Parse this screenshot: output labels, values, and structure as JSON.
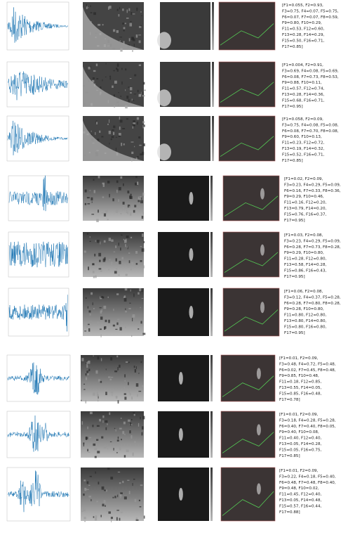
{
  "rows": [
    {
      "features": [
        "[F1=0.055, F2=0.93,",
        "F3=0.75, F4=0.07, F5=0.75,",
        "F6=0.07, F7=0.07, F8=0.59,",
        "F9=0.80, F10=0.29,",
        "F11=0.53, F12=0.60,",
        "F13=0.28, F14=0.29,",
        "F15=0.50, F16=0.71,",
        "F17=0.85]"
      ]
    },
    {
      "features": [
        "[F1=0.004, F2=0.91,",
        "F3=0.69, F4=0.08, F5=0.69,",
        "F6=0.08, F7=0.73, F8=0.53,",
        "F9=0.88, F10=0.11,",
        "F11=0.57, F12=0.74,",
        "F13=0.28, F14=0.36,",
        "F15=0.68, F16=0.71,",
        "F17=0.95]"
      ]
    },
    {
      "features": [
        "[F1=0.058, F2=0.09,",
        "F3=0.75, F4=0.08, F5=0.08,",
        "F6=0.08, F7=0.70, F8=0.08,",
        "F9=0.60, F10=0.13,",
        "F11=0.23, F12=0.72,",
        "F13=0.19, F14=0.32,",
        "F15=0.52, F16=0.71,",
        "F17=0.85]"
      ]
    },
    {
      "features": [
        "[F1=0.02, F2=0.09,",
        "F3=0.23, F4=0.29, F5=0.09,",
        "F6=0.16, F7=0.33, F8=0.36,",
        "F9=0.29, F10=0.46,",
        "F11=0.16, F12=0.20,",
        "F13=0.79, F14=0.20,",
        "F15=0.76, F16=0.37,",
        "F17=0.95]"
      ]
    },
    {
      "features": [
        "[F1=0.03, F2=0.08,",
        "F3=0.23, F4=0.29, F5=0.09,",
        "F6=0.28, F7=0.73, F8=0.28,",
        "F9=0.29, F10=0.80,",
        "F11=0.28, F12=0.80,",
        "F13=0.58, F14=0.28,",
        "F15=0.86, F16=0.43,",
        "F17=0.95]"
      ]
    },
    {
      "features": [
        "[F1=0.06, F2=0.08,",
        "F3=0.12, F4=0.37, F5=0.28,",
        "F6=0.28, F7=0.80, F8=0.28,",
        "F9=0.28, F10=0.80,",
        "F11=0.80, F12=0.80,",
        "F13=0.80, F14=0.80,",
        "F15=0.80, F16=0.80,",
        "F17=0.95]"
      ]
    },
    {
      "features": [
        "[F1=0.01, F2=0.09,",
        "F3=0.48, F4=0.72, F5=0.48,",
        "F6=0.02, F7=0.45, F8=0.48,",
        "F9=0.85, F10=0.48,",
        "F11=0.18, F12=0.85,",
        "F13=0.55, F14=0.05,",
        "F15=0.85, F16=0.48,",
        "F17=0.78]"
      ]
    },
    {
      "features": [
        "[F1=0.01, F2=0.09,",
        "F3=0.18, F4=0.28, F5=0.28,",
        "F6=0.40, F7=0.40, F8=0.05,",
        "F9=0.40, F10=0.08,",
        "F11=0.40, F12=0.40,",
        "F13=0.05, F14=0.28,",
        "F15=0.05, F16=0.75,",
        "F17=0.85]"
      ]
    },
    {
      "features": [
        "[F1=0.01, F2=0.09,",
        "F3=0.22, F4=0.18, F5=0.40,",
        "F6=0.48, F7=0.48, F8=0.40,",
        "F9=0.48, F10=0.02,",
        "F11=0.45, F12=0.40,",
        "F13=0.05, F14=0.48,",
        "F15=0.57, F16=0.44,",
        "F17=0.88]"
      ]
    }
  ]
}
